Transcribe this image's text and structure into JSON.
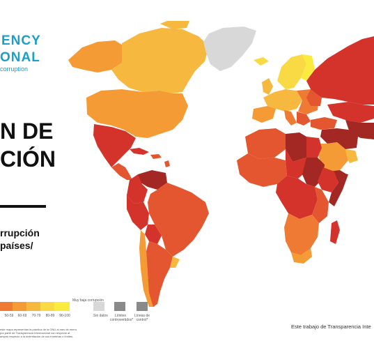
{
  "brand": {
    "line1": "ENCY",
    "line2": "ONAL",
    "line3": "corruption"
  },
  "title": {
    "line1": "N DE",
    "line2": "CIÓN"
  },
  "subtitle": {
    "line1": "rrupción",
    "line2": "países/"
  },
  "legend": {
    "ranges": [
      "50-59",
      "60-69",
      "70-79",
      "80-89",
      "90-100"
    ],
    "high_label": "Muy baja corrupción",
    "no_data": "Sin datos",
    "disputed": "Límites controvertidos*",
    "control_lines": "Líneas de control*",
    "colors": {
      "very_high": "#a32722",
      "high": "#d3332a",
      "mid_high": "#e4562f",
      "mid": "#ef7a33",
      "mid_low": "#f59b35",
      "low": "#f7b83f",
      "very_low": "#f9d944",
      "lowest": "#fbeb3e",
      "no_data": "#d8d8d8",
      "line_box": "#8a8a8a"
    }
  },
  "note": {
    "line1": "este mapa representan la práctica de la ONU al mes de enero",
    "line2": "por parte de Transparencia Internacional con respecto al",
    "line3": "ampos respecto a la delimitación de sus fronteras o límites."
  },
  "credit": "Este trabajo de Transparencia Inte"
}
